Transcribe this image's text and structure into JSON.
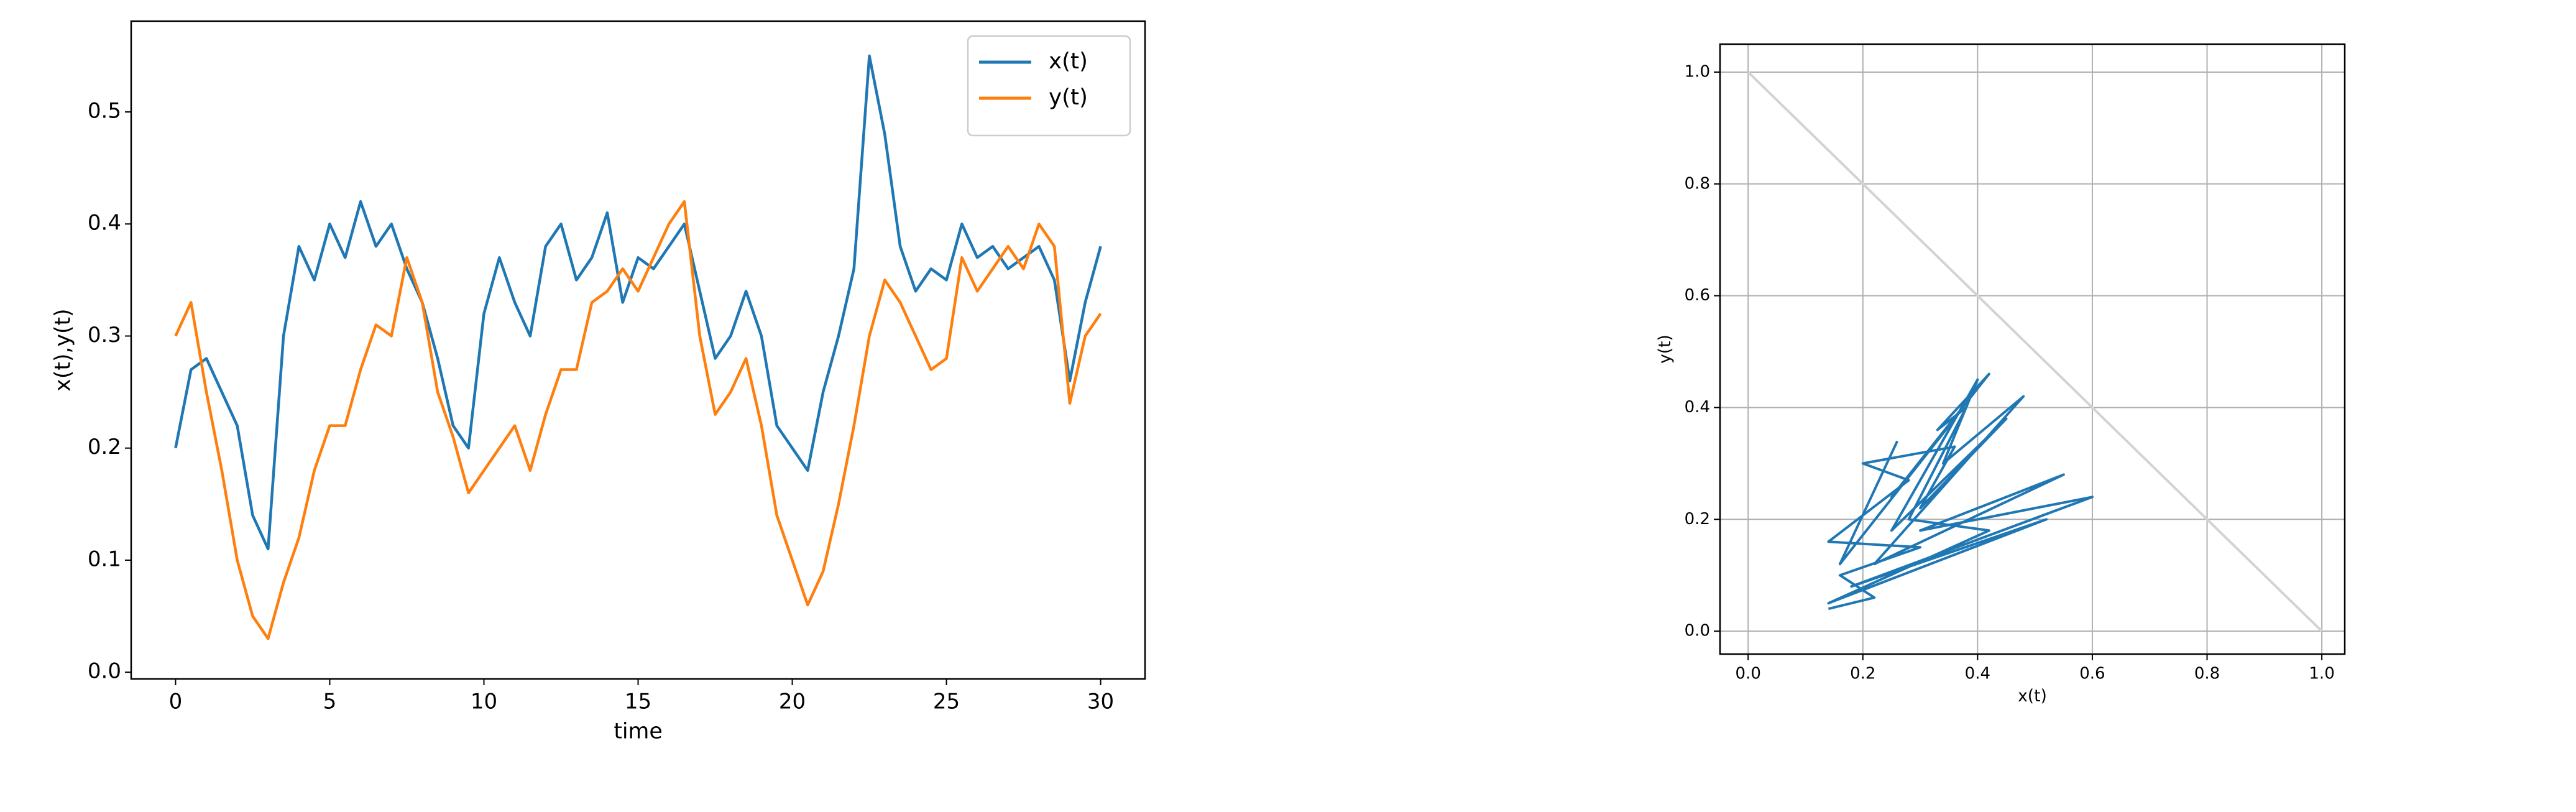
{
  "chart_data": [
    {
      "type": "line",
      "xlabel": "time",
      "ylabel": "x(t),y(t)",
      "x": [
        0,
        0.5,
        1,
        1.5,
        2,
        2.5,
        3,
        3.5,
        4,
        4.5,
        5,
        5.5,
        6,
        6.5,
        7,
        7.5,
        8,
        8.5,
        9,
        9.5,
        10,
        10.5,
        11,
        11.5,
        12,
        12.5,
        13,
        13.5,
        14,
        14.5,
        15,
        15.5,
        16,
        16.5,
        17,
        17.5,
        18,
        18.5,
        19,
        19.5,
        20,
        20.5,
        21,
        21.5,
        22,
        22.5,
        23,
        23.5,
        24,
        24.5,
        25,
        25.5,
        26,
        26.5,
        27,
        27.5,
        28,
        28.5,
        29,
        29.5,
        30
      ],
      "series": [
        {
          "name": "x(t)",
          "color": "#1f77b4",
          "values": [
            0.2,
            0.27,
            0.28,
            0.25,
            0.22,
            0.14,
            0.11,
            0.3,
            0.38,
            0.35,
            0.4,
            0.37,
            0.42,
            0.38,
            0.4,
            0.36,
            0.33,
            0.28,
            0.22,
            0.2,
            0.32,
            0.37,
            0.33,
            0.3,
            0.38,
            0.4,
            0.35,
            0.37,
            0.41,
            0.33,
            0.37,
            0.36,
            0.38,
            0.4,
            0.34,
            0.28,
            0.3,
            0.34,
            0.3,
            0.22,
            0.2,
            0.18,
            0.25,
            0.3,
            0.36,
            0.55,
            0.48,
            0.38,
            0.34,
            0.36,
            0.35,
            0.4,
            0.37,
            0.38,
            0.36,
            0.37,
            0.38,
            0.35,
            0.26,
            0.33,
            0.38
          ]
        },
        {
          "name": "y(t)",
          "color": "#ff7f0e",
          "values": [
            0.3,
            0.33,
            0.25,
            0.18,
            0.1,
            0.05,
            0.03,
            0.08,
            0.12,
            0.18,
            0.22,
            0.22,
            0.27,
            0.31,
            0.3,
            0.37,
            0.33,
            0.25,
            0.21,
            0.16,
            0.18,
            0.2,
            0.22,
            0.18,
            0.23,
            0.27,
            0.27,
            0.33,
            0.34,
            0.36,
            0.34,
            0.37,
            0.4,
            0.42,
            0.3,
            0.23,
            0.25,
            0.28,
            0.22,
            0.14,
            0.1,
            0.06,
            0.09,
            0.15,
            0.22,
            0.3,
            0.35,
            0.33,
            0.3,
            0.27,
            0.28,
            0.37,
            0.34,
            0.36,
            0.38,
            0.36,
            0.4,
            0.38,
            0.24,
            0.3,
            0.32
          ]
        }
      ],
      "xlim": [
        -1.44,
        31.44
      ],
      "xticks": [
        0,
        5,
        10,
        15,
        20,
        25,
        30
      ],
      "ylim": [
        -0.006,
        0.581
      ],
      "yticks": [
        0.0,
        0.1,
        0.2,
        0.3,
        0.4,
        0.5
      ],
      "grid": false,
      "legend": "upper right"
    },
    {
      "type": "line",
      "xlabel": "x(t)",
      "ylabel": "y(t)",
      "x": [
        0.14,
        0.22,
        0.16,
        0.3,
        0.14,
        0.28,
        0.2,
        0.36,
        0.3,
        0.45,
        0.25,
        0.4,
        0.34,
        0.48,
        0.22,
        0.55,
        0.3,
        0.6,
        0.18,
        0.52,
        0.14,
        0.42,
        0.28,
        0.38,
        0.33,
        0.42,
        0.25,
        0.36,
        0.16,
        0.26
      ],
      "series": [
        {
          "color": "#1f77b4",
          "values": [
            0.04,
            0.06,
            0.1,
            0.15,
            0.16,
            0.27,
            0.3,
            0.33,
            0.22,
            0.38,
            0.18,
            0.45,
            0.3,
            0.42,
            0.12,
            0.28,
            0.18,
            0.24,
            0.08,
            0.2,
            0.05,
            0.18,
            0.2,
            0.4,
            0.36,
            0.46,
            0.24,
            0.38,
            0.12,
            0.34
          ]
        }
      ],
      "reference_line": {
        "x": [
          0,
          1
        ],
        "values": [
          1,
          0
        ],
        "color": "#d3d3d3"
      },
      "xlim": [
        -0.049,
        1.04
      ],
      "xticks": [
        0.0,
        0.2,
        0.4,
        0.6,
        0.8,
        1.0
      ],
      "ylim": [
        -0.041,
        1.05
      ],
      "yticks": [
        0.0,
        0.2,
        0.4,
        0.6,
        0.8,
        1.0
      ],
      "grid": true
    }
  ]
}
